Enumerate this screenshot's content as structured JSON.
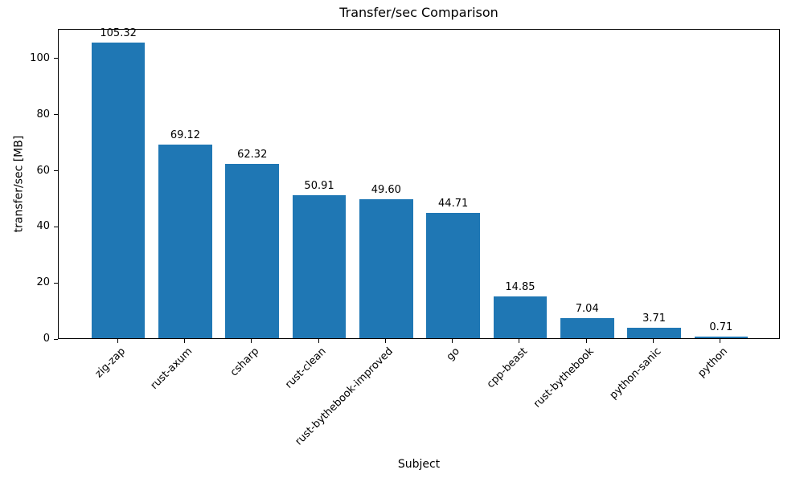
{
  "chart_data": {
    "type": "bar",
    "title": "Transfer/sec Comparison",
    "xlabel": "Subject",
    "ylabel": "transfer/sec [MB]",
    "categories": [
      "zig-zap",
      "rust-axum",
      "csharp",
      "rust-clean",
      "rust-bythebook-improved",
      "go",
      "cpp-beast",
      "rust-bythebook",
      "python-sanic",
      "python"
    ],
    "values": [
      105.32,
      69.12,
      62.32,
      50.91,
      49.6,
      44.71,
      14.85,
      7.04,
      3.71,
      0.71
    ],
    "value_labels": [
      "105.32",
      "69.12",
      "62.32",
      "50.91",
      "49.60",
      "44.71",
      "14.85",
      "7.04",
      "3.71",
      "0.71"
    ],
    "yticks": [
      0,
      20,
      40,
      60,
      80,
      100
    ],
    "ylim": [
      0,
      110.6
    ],
    "bar_color": "#1f77b4",
    "grid": false,
    "legend_position": "none"
  }
}
